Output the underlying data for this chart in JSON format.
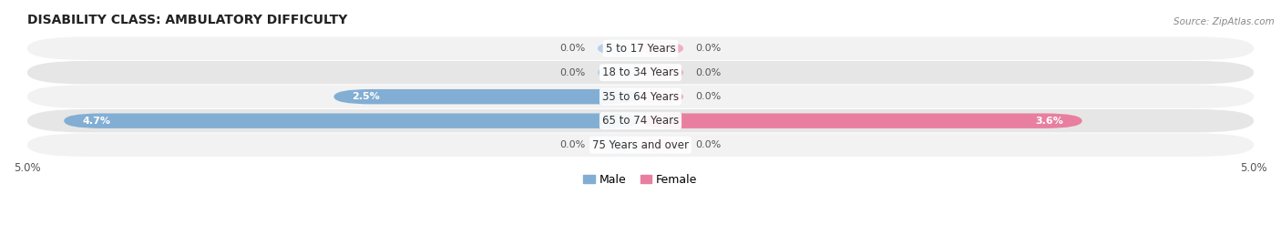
{
  "title": "DISABILITY CLASS: AMBULATORY DIFFICULTY",
  "source": "Source: ZipAtlas.com",
  "categories": [
    "5 to 17 Years",
    "18 to 34 Years",
    "35 to 64 Years",
    "65 to 74 Years",
    "75 Years and over"
  ],
  "male_values": [
    0.0,
    0.0,
    2.5,
    4.7,
    0.0
  ],
  "female_values": [
    0.0,
    0.0,
    0.0,
    3.6,
    0.0
  ],
  "x_max": 5.0,
  "male_color": "#82aed4",
  "female_color": "#e87fa0",
  "male_color_light": "#b8d0e8",
  "female_color_light": "#f0afc0",
  "row_bg_light": "#f2f2f2",
  "row_bg_dark": "#e6e6e6",
  "title_color": "#222222",
  "source_color": "#888888",
  "label_color": "#333333",
  "value_color": "#555555",
  "stub_value": 0.35,
  "legend_male": "Male",
  "legend_female": "Female"
}
